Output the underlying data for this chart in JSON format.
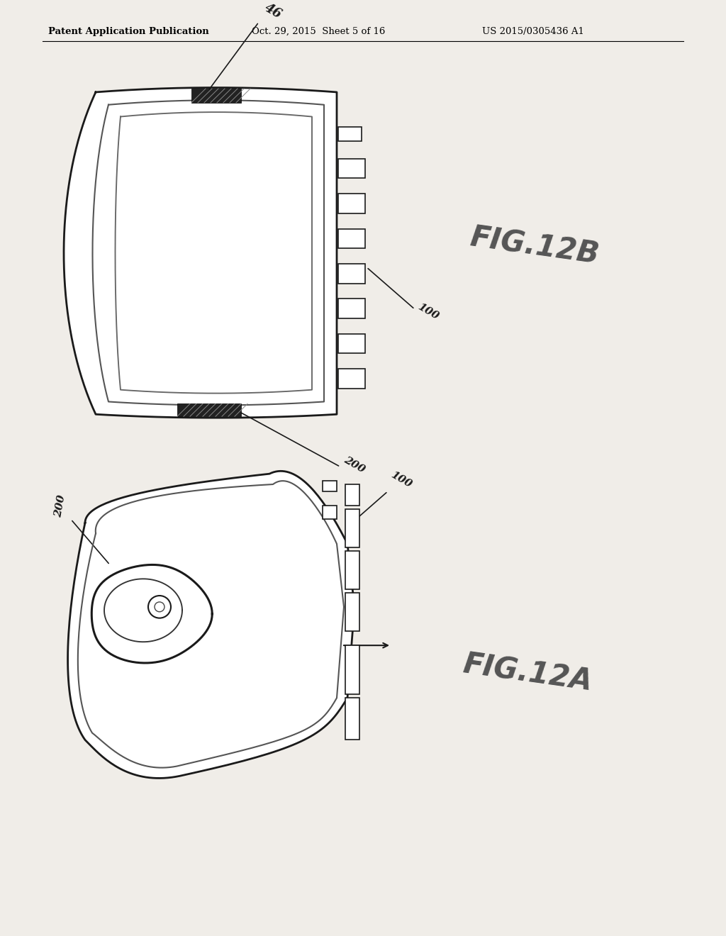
{
  "bg_color": "#f0ede8",
  "header_text_left": "Patent Application Publication",
  "header_text_mid": "Oct. 29, 2015  Sheet 5 of 16",
  "header_text_right": "US 2015/0305436 A1",
  "fig12b_label": "FIG.12B",
  "fig12a_label": "FIG.12A",
  "label_46": "46",
  "label_100_top": "100",
  "label_200_mid": "200",
  "label_200_bot": "200",
  "label_100_bot": "100",
  "lw_main": 2.0,
  "lw_inner": 1.5
}
